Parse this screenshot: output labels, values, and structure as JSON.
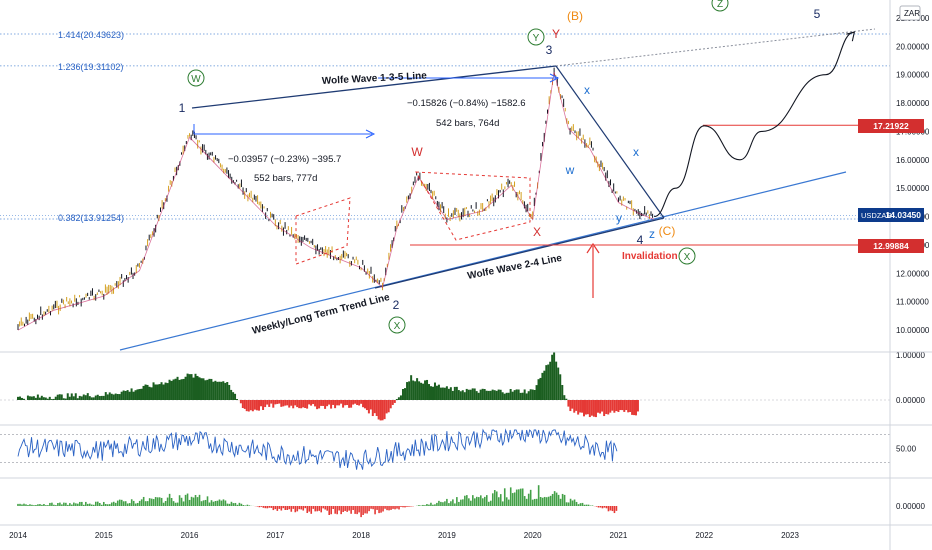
{
  "symbol": "USDZAR",
  "currency_button": "ZAR",
  "colors": {
    "candle": "#131722",
    "candle_up": "#d4a020",
    "trendline": "#1f3b73",
    "longterm": "#3a78d2",
    "level_line": "#e53935",
    "fib_line": "#5a8fd6",
    "wave_green": "#2e7d32",
    "wave_red": "#d32f2f",
    "wave_orange": "#ef8a12",
    "wave_navy": "#1a2c63",
    "wave_blue": "#1e6fd0",
    "measure": "#2962ff",
    "osc_pos": "#1b5e20",
    "osc_neg": "#e53935",
    "rsi": "#2a62c4",
    "tag_red_bg": "#d32f2f",
    "tag_navy_bg": "#0d3b8c"
  },
  "chart_data": [
    {
      "type": "line",
      "title": "USDZAR",
      "x": [
        "2014-01",
        "2014-06",
        "2015-01",
        "2015-06",
        "2016-01",
        "2016-06",
        "2017-01",
        "2017-06",
        "2018-01",
        "2018-04",
        "2018-06",
        "2018-09",
        "2019-01",
        "2019-06",
        "2019-10",
        "2020-01",
        "2020-04",
        "2020-06",
        "2020-09",
        "2021-01",
        "2021-04",
        "2021-06",
        "2021-09",
        "2022-01",
        "2022-06",
        "2022-09",
        "2023-06",
        "2023-10"
      ],
      "series": [
        {
          "values": [
            10.1,
            10.8,
            11.3,
            12.2,
            16.9,
            15.6,
            13.8,
            13.0,
            12.3,
            11.6,
            13.7,
            15.5,
            14.0,
            14.3,
            15.2,
            14.0,
            19.2,
            17.2,
            16.5,
            14.6,
            14.2,
            14.0,
            15.0,
            17.2,
            16.0,
            17.0,
            19.0,
            20.5
          ]
        }
      ],
      "projection_from": "2021-06",
      "ylim": [
        9.5,
        21.5
      ],
      "yticks": [
        10.0,
        11.0,
        12.0,
        13.0,
        14.0,
        15.0,
        16.0,
        17.0,
        18.0,
        19.0,
        20.0,
        21.0
      ],
      "ytick_labels": [
        "10.00000",
        "11.00000",
        "12.00000",
        "13.00000",
        "14.00000",
        "15.00000",
        "16.00000",
        "17.00000",
        "18.00000",
        "19.00000",
        "20.00000",
        "21.00000"
      ],
      "xlim": [
        "2013-10",
        "2024-06"
      ],
      "xticks": [
        "2014",
        "2015",
        "2016",
        "2017",
        "2018",
        "2019",
        "2020",
        "2021",
        "2022",
        "2023"
      ],
      "last_value_label": "14.03450",
      "price_levels": [
        {
          "label": "17.21922",
          "value": 17.21922
        },
        {
          "label": "12.99884",
          "value": 12.99884
        }
      ],
      "fib_levels": [
        {
          "label": "1.414(20.43623)",
          "value": 20.43623
        },
        {
          "label": "1.236(19.31102)",
          "value": 19.31102
        },
        {
          "label": "0.382(13.91254)",
          "value": 13.91254
        }
      ],
      "annotations": {
        "wolfe_135": "Wolfe Wave 1-3-5 Line",
        "wolfe_24": "Wolfe Wave 2-4 Line",
        "long_term": "Weekly/Long Term Trend Line",
        "invalidation": "Invalidation",
        "measure1_a": "−0.03957 (−0.23%) −395.7",
        "measure1_b": "552 bars, 777d",
        "measure2_a": "−0.15826 (−0.84%) −1582.6",
        "measure2_b": "542 bars, 764d"
      },
      "wave_labels": [
        "W",
        "1",
        "2",
        "X",
        "W",
        "X",
        "3",
        "Y",
        "(B)",
        "Y",
        "x",
        "x",
        "w",
        "y",
        "z",
        "4",
        "(C)",
        "X",
        "Z",
        "5"
      ]
    },
    {
      "type": "area",
      "title": "",
      "x": [
        "2014-01",
        "2014-06",
        "2015-01",
        "2015-06",
        "2016-01",
        "2016-06",
        "2016-09",
        "2017-01",
        "2017-06",
        "2018-01",
        "2018-04",
        "2018-08",
        "2019-01",
        "2019-06",
        "2020-01",
        "2020-04",
        "2020-06",
        "2020-09",
        "2021-01",
        "2021-04"
      ],
      "values": [
        0.05,
        0.08,
        0.12,
        0.25,
        0.55,
        0.4,
        -0.25,
        -0.12,
        -0.15,
        -0.12,
        -0.45,
        0.5,
        0.25,
        0.2,
        0.2,
        1.05,
        -0.2,
        -0.35,
        -0.25,
        -0.3
      ],
      "ylim": [
        -0.6,
        1.1
      ],
      "ytick_labels": [
        "1.00000",
        "0.00000"
      ]
    },
    {
      "type": "line",
      "title": "",
      "x": [
        "2014",
        "2015",
        "2016",
        "2017",
        "2018",
        "2019",
        "2020",
        "2021"
      ],
      "values": [
        52,
        48,
        60,
        45,
        38,
        58,
        68,
        45
      ],
      "ylim": [
        25,
        70
      ],
      "yticks": [
        50
      ],
      "ytick_labels": [
        "50.00"
      ]
    },
    {
      "type": "bar",
      "title": "",
      "x": [
        "2014",
        "2015",
        "2016",
        "2017",
        "2018",
        "2019",
        "2020",
        "2021"
      ],
      "values": [
        0.1,
        0.2,
        0.6,
        -0.2,
        -0.5,
        0.3,
        1.0,
        -0.4
      ],
      "ylim": [
        -0.6,
        1.1
      ],
      "ytick_labels": [
        "0.00000"
      ]
    }
  ]
}
